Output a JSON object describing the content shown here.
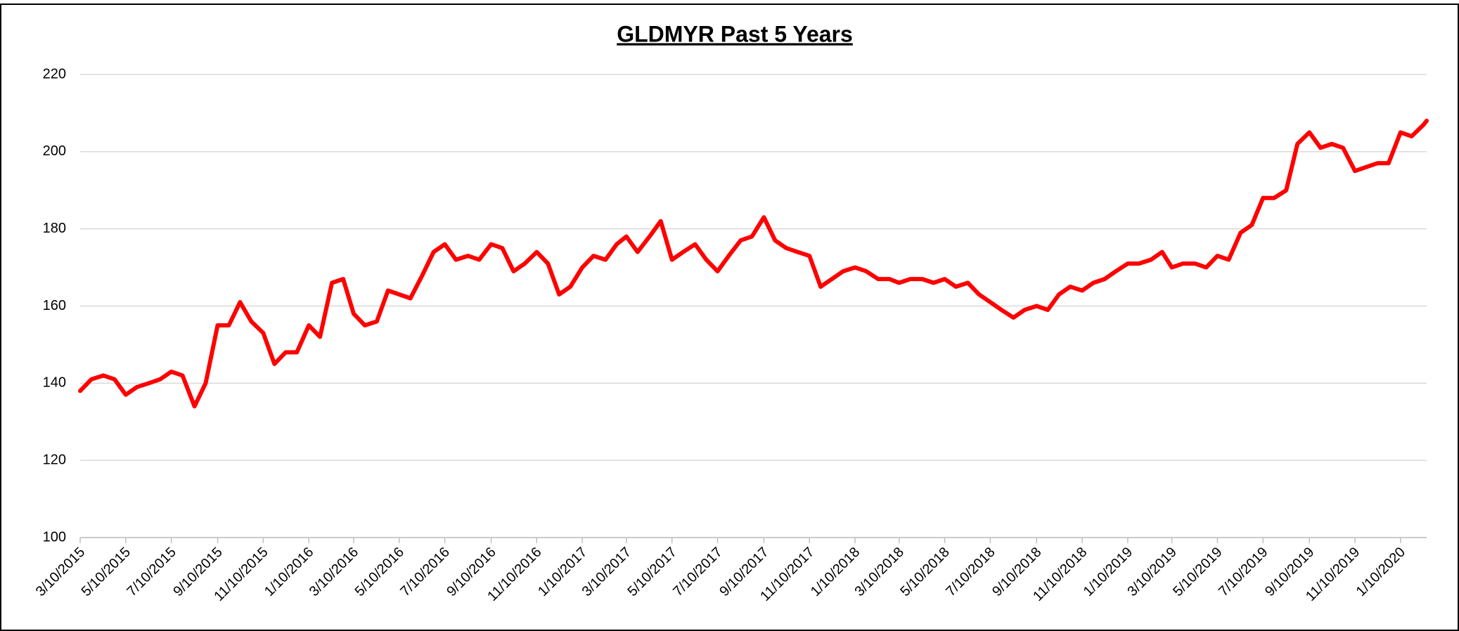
{
  "chart_data": {
    "type": "line",
    "title": "GLDMYR Past 5 Years",
    "color": "#ff0000",
    "grid": true,
    "x": [
      "3/10/2015",
      "3/25/2015",
      "4/10/2015",
      "4/25/2015",
      "5/10/2015",
      "5/25/2015",
      "6/10/2015",
      "6/25/2015",
      "7/10/2015",
      "7/25/2015",
      "8/10/2015",
      "8/25/2015",
      "9/10/2015",
      "9/25/2015",
      "10/10/2015",
      "10/25/2015",
      "11/10/2015",
      "11/25/2015",
      "12/10/2015",
      "12/25/2015",
      "1/10/2016",
      "1/25/2016",
      "2/10/2016",
      "2/25/2016",
      "3/10/2016",
      "3/25/2016",
      "4/10/2016",
      "4/25/2016",
      "5/10/2016",
      "5/25/2016",
      "6/10/2016",
      "6/25/2016",
      "7/10/2016",
      "7/25/2016",
      "8/10/2016",
      "8/25/2016",
      "9/10/2016",
      "9/25/2016",
      "10/10/2016",
      "10/25/2016",
      "11/10/2016",
      "11/25/2016",
      "12/10/2016",
      "12/25/2016",
      "1/10/2017",
      "1/25/2017",
      "2/10/2017",
      "2/25/2017",
      "3/10/2017",
      "3/25/2017",
      "4/10/2017",
      "4/25/2017",
      "5/10/2017",
      "5/25/2017",
      "6/10/2017",
      "6/25/2017",
      "7/10/2017",
      "7/25/2017",
      "8/10/2017",
      "8/25/2017",
      "9/10/2017",
      "9/25/2017",
      "10/10/2017",
      "10/25/2017",
      "11/10/2017",
      "11/25/2017",
      "12/10/2017",
      "12/25/2017",
      "1/10/2018",
      "1/25/2018",
      "2/10/2018",
      "2/25/2018",
      "3/10/2018",
      "3/25/2018",
      "4/10/2018",
      "4/25/2018",
      "5/10/2018",
      "5/25/2018",
      "6/10/2018",
      "6/25/2018",
      "7/10/2018",
      "7/25/2018",
      "8/10/2018",
      "8/25/2018",
      "9/10/2018",
      "9/25/2018",
      "10/10/2018",
      "10/25/2018",
      "11/10/2018",
      "11/25/2018",
      "12/10/2018",
      "12/25/2018",
      "1/10/2019",
      "1/25/2019",
      "2/10/2019",
      "2/25/2019",
      "3/10/2019",
      "3/25/2019",
      "4/10/2019",
      "4/25/2019",
      "5/10/2019",
      "5/25/2019",
      "6/10/2019",
      "6/25/2019",
      "7/10/2019",
      "7/25/2019",
      "8/10/2019",
      "8/25/2019",
      "9/10/2019",
      "9/25/2019",
      "10/10/2019",
      "10/25/2019",
      "11/10/2019",
      "11/25/2019",
      "12/10/2019",
      "12/25/2019",
      "1/10/2020",
      "1/25/2020",
      "2/10/2020",
      "2/14/2020"
    ],
    "values": [
      138,
      141,
      142,
      141,
      137,
      139,
      140,
      141,
      143,
      142,
      134,
      140,
      155,
      155,
      161,
      156,
      153,
      145,
      148,
      148,
      155,
      152,
      166,
      167,
      158,
      155,
      156,
      164,
      163,
      162,
      168,
      174,
      176,
      172,
      173,
      172,
      176,
      175,
      169,
      171,
      174,
      171,
      163,
      165,
      170,
      173,
      172,
      176,
      178,
      174,
      178,
      182,
      172,
      174,
      176,
      172,
      169,
      173,
      177,
      178,
      183,
      177,
      175,
      174,
      173,
      165,
      167,
      169,
      170,
      169,
      167,
      167,
      166,
      167,
      167,
      166,
      167,
      165,
      166,
      163,
      161,
      159,
      157,
      159,
      160,
      159,
      163,
      165,
      164,
      166,
      167,
      169,
      171,
      171,
      172,
      174,
      170,
      171,
      171,
      170,
      173,
      172,
      179,
      181,
      188,
      188,
      190,
      202,
      205,
      201,
      202,
      201,
      195,
      196,
      197,
      197,
      205,
      204,
      207,
      208
    ],
    "xlim": [
      "3/10/2015",
      "2/14/2020"
    ],
    "xticks": [
      "3/10/2015",
      "5/10/2015",
      "7/10/2015",
      "9/10/2015",
      "11/10/2015",
      "1/10/2016",
      "3/10/2016",
      "5/10/2016",
      "7/10/2016",
      "9/10/2016",
      "11/10/2016",
      "1/10/2017",
      "3/10/2017",
      "5/10/2017",
      "7/10/2017",
      "9/10/2017",
      "11/10/2017",
      "1/10/2018",
      "3/10/2018",
      "5/10/2018",
      "7/10/2018",
      "9/10/2018",
      "11/10/2018",
      "1/10/2019",
      "3/10/2019",
      "5/10/2019",
      "7/10/2019",
      "9/10/2019",
      "11/10/2019",
      "1/10/2020"
    ],
    "ylim": [
      100,
      220
    ],
    "yticks": [
      100,
      120,
      140,
      160,
      180,
      200,
      220
    ]
  }
}
